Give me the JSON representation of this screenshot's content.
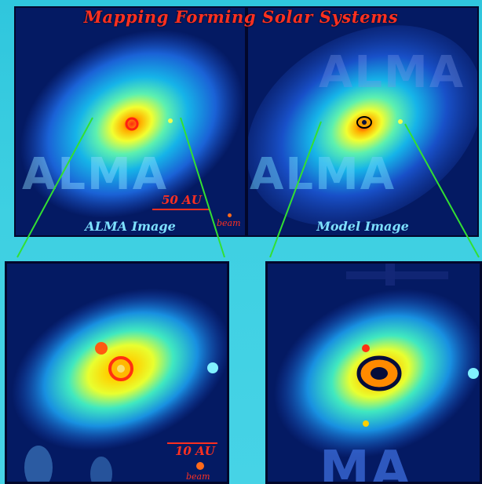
{
  "title": "Mapping Forming Solar Systems",
  "panels": {
    "top_left": {
      "caption": "ALMA Image",
      "watermark": "ALMA",
      "scale_label": "50 AU",
      "beam_label": "beam"
    },
    "top_right": {
      "caption": "Model Image",
      "watermark_1": "ALMA",
      "watermark_2": "ALMA"
    },
    "bottom_left": {
      "scale_label": "10 AU",
      "beam_label": "beam"
    },
    "bottom_right": {
      "watermark": "MA"
    }
  },
  "colors": {
    "background": "#3ed0e2",
    "panel_bg": "#041a63",
    "title": "#ff3020",
    "caption": "#7de0ff",
    "zoom_lines": "#32e032"
  }
}
